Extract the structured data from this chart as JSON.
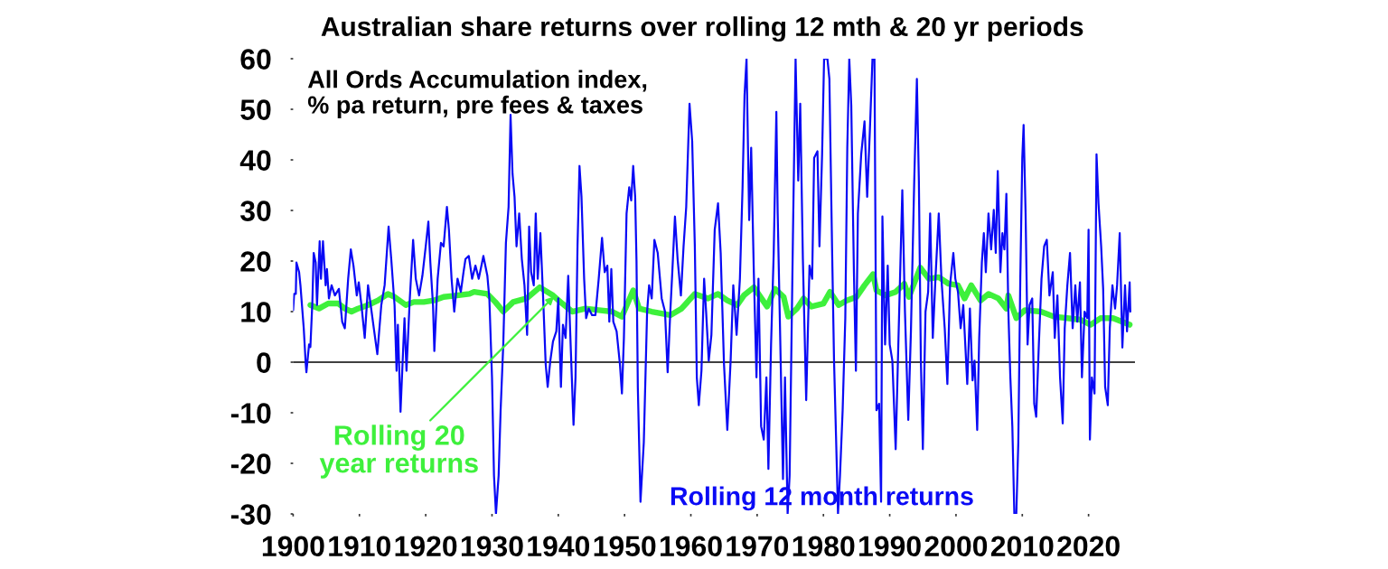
{
  "chart_data": {
    "type": "line",
    "title": "Australian share returns over rolling 12 mth & 20 yr periods",
    "subtitle": "All Ords Accumulation index,\n% pa return, pre fees & taxes",
    "xlim": [
      1900,
      2027
    ],
    "xticks": [
      1900,
      1910,
      1920,
      1930,
      1940,
      1950,
      1960,
      1970,
      1980,
      1990,
      2000,
      2010,
      2020
    ],
    "ylim": [
      -30,
      60
    ],
    "yticks": [
      -30,
      -20,
      -10,
      0,
      10,
      20,
      30,
      40,
      50,
      60
    ],
    "ref_lines": [
      {
        "axis": "y",
        "value": 0,
        "color": "#000000",
        "line_style": "solid"
      }
    ],
    "line_style": "solid",
    "grid": false,
    "legend": false,
    "series": [
      {
        "name": "Rolling 20\nyear returns",
        "color": "#3ef03c",
        "x": [
          1902.6,
          1903.9,
          1905.3,
          1906.8,
          1907.8,
          1908.8,
          1909.8,
          1911.3,
          1912.8,
          1914.3,
          1915.3,
          1917.0,
          1918.2,
          1919.7,
          1921.2,
          1922.7,
          1924.7,
          1926.6,
          1927.3,
          1929.3,
          1930.5,
          1931.7,
          1933.2,
          1935.2,
          1937.2,
          1939.2,
          1940.6,
          1942.1,
          1944.1,
          1946.1,
          1948.1,
          1949.6,
          1951.3,
          1952.2,
          1954.1,
          1956.9,
          1958.6,
          1960.6,
          1962.6,
          1964.1,
          1965.5,
          1967.0,
          1968.0,
          1969.5,
          1971.5,
          1972.7,
          1974.0,
          1974.7,
          1976.0,
          1977.0,
          1978.2,
          1980.0,
          1981.0,
          1982.3,
          1983.5,
          1985.0,
          1986.2,
          1987.5,
          1988.0,
          1989.4,
          1990.9,
          1992.2,
          1992.9,
          1994.6,
          1995.9,
          1997.4,
          1998.9,
          2000.3,
          2001.3,
          2002.3,
          2003.7,
          2004.9,
          2006.4,
          2007.6,
          2007.9,
          2009.1,
          2010.4,
          2012.8,
          2014.8,
          2016.8,
          2018.8,
          2020.3,
          2021.8,
          2023.7,
          2026.2
        ],
        "values": [
          11.3,
          10.6,
          11.6,
          11.6,
          10.6,
          10.0,
          10.6,
          11.3,
          12.2,
          13.5,
          12.9,
          11.3,
          11.9,
          11.9,
          12.2,
          12.9,
          13.2,
          13.5,
          13.9,
          13.5,
          11.9,
          10.0,
          11.9,
          12.6,
          14.8,
          13.2,
          11.6,
          10.0,
          10.6,
          10.3,
          10.0,
          9.0,
          14.2,
          10.6,
          10.0,
          9.3,
          10.6,
          13.5,
          12.6,
          13.5,
          12.2,
          11.3,
          13.2,
          14.8,
          11.0,
          14.5,
          12.9,
          9.0,
          10.6,
          12.6,
          11.0,
          11.6,
          13.9,
          11.3,
          12.2,
          12.9,
          15.2,
          17.4,
          14.2,
          13.2,
          13.9,
          15.5,
          12.9,
          18.7,
          16.5,
          16.8,
          15.5,
          15.2,
          12.6,
          15.2,
          12.2,
          13.5,
          12.6,
          10.6,
          13.2,
          8.7,
          10.3,
          10.0,
          9.0,
          8.7,
          8.4,
          7.4,
          8.7,
          8.7,
          7.4
        ]
      },
      {
        "name": "Rolling 12 month returns",
        "color": "#0a0af5",
        "x": [
          1900.0,
          1900.15,
          1900.4,
          1900.5,
          1900.9,
          1901.1,
          1901.6,
          1901.9,
          1902.0,
          1902.4,
          1902.6,
          1902.9,
          1903.1,
          1903.4,
          1903.6,
          1904.0,
          1904.2,
          1904.5,
          1904.9,
          1905.1,
          1905.4,
          1905.8,
          1906.3,
          1906.9,
          1907.4,
          1907.8,
          1908.3,
          1908.7,
          1909.1,
          1909.6,
          1909.9,
          1910.3,
          1910.8,
          1911.3,
          1911.7,
          1912.2,
          1912.7,
          1913.3,
          1913.8,
          1914.4,
          1914.8,
          1915.3,
          1915.6,
          1915.8,
          1916.2,
          1916.5,
          1916.8,
          1917.1,
          1917.6,
          1918.1,
          1918.5,
          1919.0,
          1919.5,
          1920.0,
          1920.4,
          1920.7,
          1921.1,
          1921.3,
          1921.8,
          1922.3,
          1922.7,
          1923.2,
          1923.5,
          1923.9,
          1924.3,
          1924.8,
          1925.3,
          1925.7,
          1926.0,
          1926.5,
          1927.0,
          1927.5,
          1928.0,
          1928.7,
          1929.3,
          1929.6,
          1930.0,
          1930.3,
          1930.6,
          1931.0,
          1931.3,
          1931.7,
          1932.1,
          1932.5,
          1932.8,
          1933.1,
          1933.4,
          1933.7,
          1934.1,
          1934.5,
          1934.9,
          1935.3,
          1935.6,
          1935.9,
          1936.3,
          1936.6,
          1936.9,
          1937.3,
          1937.7,
          1938.1,
          1938.4,
          1938.8,
          1939.2,
          1939.7,
          1940.0,
          1940.4,
          1940.7,
          1941.1,
          1941.5,
          1941.9,
          1942.3,
          1942.6,
          1942.9,
          1943.2,
          1943.5,
          1943.9,
          1944.2,
          1944.6,
          1945.1,
          1945.6,
          1946.1,
          1946.6,
          1947.0,
          1947.4,
          1947.7,
          1948.0,
          1948.3,
          1948.8,
          1949.3,
          1949.6,
          1949.9,
          1950.3,
          1950.7,
          1951.0,
          1951.3,
          1951.6,
          1951.8,
          1952.0,
          1952.4,
          1952.9,
          1953.4,
          1953.7,
          1954.1,
          1954.5,
          1955.0,
          1955.6,
          1956.1,
          1956.5,
          1956.9,
          1957.2,
          1957.6,
          1958.0,
          1958.5,
          1958.9,
          1959.3,
          1959.8,
          1960.2,
          1960.6,
          1960.9,
          1961.2,
          1961.6,
          1962.0,
          1962.3,
          1962.7,
          1963.1,
          1963.6,
          1964.1,
          1964.5,
          1965.0,
          1965.5,
          1966.0,
          1966.4,
          1966.9,
          1967.4,
          1967.8,
          1968.1,
          1968.4,
          1968.8,
          1969.1,
          1969.5,
          1969.9,
          1970.2,
          1970.6,
          1971.0,
          1971.4,
          1971.7,
          1972.1,
          1972.5,
          1972.9,
          1973.1,
          1973.5,
          1973.9,
          1974.2,
          1974.6,
          1974.9,
          1975.4,
          1975.8,
          1976.2,
          1976.5,
          1976.9,
          1977.4,
          1977.9,
          1978.3,
          1978.6,
          1979.1,
          1979.4,
          1979.8,
          1980.1,
          1980.6,
          1980.9,
          1981.3,
          1981.6,
          1981.9,
          1982.2,
          1982.5,
          1982.9,
          1983.3,
          1983.6,
          1983.9,
          1984.2,
          1984.6,
          1984.9,
          1985.2,
          1985.7,
          1986.2,
          1986.6,
          1987.0,
          1987.4,
          1987.7,
          1988.0,
          1988.4,
          1988.7,
          1988.9,
          1989.3,
          1989.7,
          1990.0,
          1990.4,
          1990.9,
          1991.3,
          1991.9,
          1992.3,
          1992.8,
          1993.2,
          1993.7,
          1994.1,
          1994.4,
          1994.7,
          1995.0,
          1995.4,
          1995.8,
          1996.1,
          1996.5,
          1996.9,
          1997.4,
          1997.8,
          1998.3,
          1998.7,
          1999.1,
          1999.6,
          1999.9,
          2000.3,
          2000.7,
          2001.1,
          2001.7,
          2002.1,
          2002.5,
          2002.8,
          2003.2,
          2003.5,
          2003.9,
          2004.2,
          2004.5,
          2004.9,
          2005.3,
          2005.7,
          2006.0,
          2006.3,
          2006.7,
          2007.0,
          2007.3,
          2007.6,
          2007.9,
          2008.2,
          2008.5,
          2008.8,
          2009.1,
          2009.4,
          2009.7,
          2010.0,
          2010.2,
          2010.5,
          2010.8,
          2011.1,
          2011.5,
          2011.8,
          2012.1,
          2012.5,
          2012.9,
          2013.3,
          2013.7,
          2014.1,
          2014.6,
          2014.9,
          2015.3,
          2015.7,
          2016.1,
          2016.4,
          2016.8,
          2017.2,
          2017.6,
          2018.0,
          2018.3,
          2018.7,
          2019.0,
          2019.4,
          2019.8,
          2020.0,
          2020.2,
          2020.5,
          2020.9,
          2021.2,
          2021.5,
          2021.9,
          2022.2,
          2022.5,
          2022.9,
          2023.2,
          2023.6,
          2024.0,
          2024.3,
          2024.7,
          2025.1,
          2025.5,
          2025.8,
          2026.2,
          2026.3
        ],
        "values": [
          10.3,
          13.5,
          13.5,
          19.7,
          17.8,
          15.2,
          6.7,
          -0.4,
          -2.0,
          3.5,
          3.0,
          11.9,
          21.6,
          19.7,
          11.3,
          23.9,
          16.5,
          23.9,
          15.2,
          18.4,
          12.6,
          15.2,
          13.2,
          14.5,
          8.0,
          6.7,
          16.5,
          22.3,
          19.1,
          13.2,
          15.8,
          11.3,
          4.8,
          15.2,
          11.3,
          6.4,
          1.6,
          11.3,
          15.2,
          26.8,
          20.4,
          11.3,
          -1.7,
          7.4,
          -9.8,
          -0.4,
          8.7,
          -1.7,
          12.6,
          24.2,
          16.5,
          13.2,
          17.1,
          22.9,
          27.8,
          19.7,
          11.3,
          2.2,
          16.5,
          23.6,
          22.9,
          30.7,
          26.2,
          16.5,
          10.0,
          16.5,
          13.9,
          17.8,
          20.4,
          21.0,
          16.5,
          19.1,
          16.5,
          21.0,
          17.1,
          12.6,
          -3.0,
          -22.4,
          -30,
          -22.4,
          -9.5,
          3.5,
          23.6,
          30.7,
          48.9,
          37.2,
          32.7,
          22.9,
          29.4,
          20.4,
          15.2,
          5.4,
          26.8,
          17.8,
          15.2,
          29.4,
          16.5,
          25.5,
          13.2,
          -0.4,
          -4.9,
          0.3,
          4.1,
          6.1,
          12.6,
          -4.9,
          7.4,
          4.8,
          17.1,
          2.2,
          -12.4,
          -3.0,
          22.9,
          38.8,
          32.7,
          16.5,
          8.7,
          10.6,
          9.3,
          9.3,
          16.5,
          24.6,
          17.8,
          19.1,
          8.0,
          18.4,
          8.0,
          6.1,
          -0.4,
          -6.2,
          4.8,
          29.4,
          34.6,
          32.0,
          38.8,
          32.7,
          20.0,
          -5.0,
          -27.6,
          -15.9,
          10.0,
          15.2,
          12.6,
          24.2,
          21.6,
          12.6,
          10.0,
          -2.0,
          10.0,
          17.8,
          28.8,
          20.4,
          13.2,
          22.9,
          30.7,
          51.1,
          43.7,
          22.9,
          -3.0,
          -8.5,
          -1.7,
          16.5,
          10.0,
          0.3,
          5.4,
          26.2,
          31.4,
          21.6,
          -0.4,
          -13.4,
          0.3,
          15.2,
          5.4,
          16.5,
          34.6,
          52.8,
          60,
          28.1,
          42.4,
          17.8,
          -3.0,
          16.5,
          -12.7,
          -15.3,
          -3.0,
          -21.1,
          3.5,
          21.6,
          49.5,
          29.4,
          3.5,
          -23.1,
          -3.0,
          -30,
          -22.4,
          24.9,
          60,
          35.9,
          51.1,
          20.4,
          -7.5,
          19.1,
          16.5,
          40.4,
          41.7,
          22.9,
          41.1,
          60,
          60,
          56.0,
          22.9,
          0.3,
          -14.6,
          -30,
          -22.4,
          -9.5,
          8.7,
          42.4,
          60,
          50.8,
          17.8,
          -1.7,
          29.4,
          41.1,
          47.6,
          32.7,
          45.6,
          60,
          60,
          -9.5,
          -8.2,
          -27.6,
          28.8,
          3.5,
          19.1,
          3.5,
          0.3,
          -17.2,
          3.5,
          34.0,
          10.0,
          -11.4,
          6.1,
          35.9,
          56.0,
          35.9,
          0.3,
          -17.2,
          10.0,
          13.9,
          29.4,
          4.8,
          16.5,
          29.4,
          16.5,
          6.7,
          -4.3,
          15.2,
          21.6,
          16.5,
          13.9,
          6.7,
          11.3,
          -4.3,
          10.6,
          -3.6,
          0.3,
          -13.4,
          4.8,
          19.7,
          25.5,
          17.8,
          29.4,
          22.3,
          30.1,
          21.6,
          37.8,
          17.8,
          25.5,
          22.3,
          33.3,
          10.0,
          -3.0,
          -12.7,
          -30,
          -30,
          -15.9,
          16.5,
          40.4,
          46.9,
          29.4,
          3.5,
          11.3,
          12.6,
          -8.2,
          -10.8,
          3.5,
          16.5,
          22.9,
          24.2,
          13.2,
          17.8,
          4.8,
          13.2,
          -3.0,
          -12.1,
          6.7,
          15.2,
          21.6,
          6.7,
          15.2,
          8.0,
          15.8,
          -3.0,
          10.0,
          8.7,
          26.2,
          -15.3,
          -3.0,
          -6.2,
          41.1,
          31.4,
          22.9,
          14.5,
          -4.9,
          -8.5,
          6.7,
          15.2,
          10.6,
          15.2,
          25.5,
          2.9,
          15.2,
          6.1,
          15.8,
          10.0
        ]
      }
    ]
  }
}
